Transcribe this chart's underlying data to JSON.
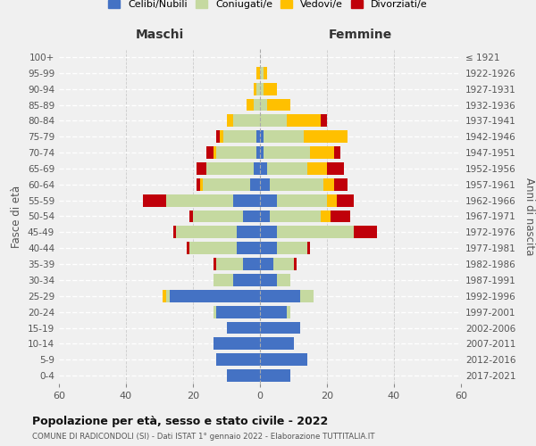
{
  "age_groups": [
    "0-4",
    "5-9",
    "10-14",
    "15-19",
    "20-24",
    "25-29",
    "30-34",
    "35-39",
    "40-44",
    "45-49",
    "50-54",
    "55-59",
    "60-64",
    "65-69",
    "70-74",
    "75-79",
    "80-84",
    "85-89",
    "90-94",
    "95-99",
    "100+"
  ],
  "birth_years": [
    "2017-2021",
    "2012-2016",
    "2007-2011",
    "2002-2006",
    "1997-2001",
    "1992-1996",
    "1987-1991",
    "1982-1986",
    "1977-1981",
    "1972-1976",
    "1967-1971",
    "1962-1966",
    "1957-1961",
    "1952-1956",
    "1947-1951",
    "1942-1946",
    "1937-1941",
    "1932-1936",
    "1927-1931",
    "1922-1926",
    "≤ 1921"
  ],
  "male": {
    "celibi": [
      10,
      13,
      14,
      10,
      13,
      27,
      8,
      5,
      7,
      7,
      5,
      8,
      3,
      2,
      1,
      1,
      0,
      0,
      0,
      0,
      0
    ],
    "coniugati": [
      0,
      0,
      0,
      0,
      1,
      1,
      6,
      8,
      14,
      18,
      15,
      20,
      14,
      14,
      12,
      10,
      8,
      2,
      1,
      0,
      0
    ],
    "vedovi": [
      0,
      0,
      0,
      0,
      0,
      1,
      0,
      0,
      0,
      0,
      0,
      0,
      1,
      0,
      1,
      1,
      2,
      2,
      1,
      1,
      0
    ],
    "divorziati": [
      0,
      0,
      0,
      0,
      0,
      0,
      0,
      1,
      1,
      1,
      1,
      7,
      1,
      3,
      2,
      1,
      0,
      0,
      0,
      0,
      0
    ]
  },
  "female": {
    "nubili": [
      9,
      14,
      10,
      12,
      8,
      12,
      5,
      4,
      5,
      5,
      3,
      5,
      3,
      2,
      1,
      1,
      0,
      0,
      0,
      0,
      0
    ],
    "coniugate": [
      0,
      0,
      0,
      0,
      1,
      4,
      4,
      6,
      9,
      23,
      15,
      15,
      16,
      12,
      14,
      12,
      8,
      2,
      1,
      1,
      0
    ],
    "vedove": [
      0,
      0,
      0,
      0,
      0,
      0,
      0,
      0,
      0,
      0,
      3,
      3,
      3,
      6,
      7,
      13,
      10,
      7,
      4,
      1,
      0
    ],
    "divorziate": [
      0,
      0,
      0,
      0,
      0,
      0,
      0,
      1,
      1,
      7,
      6,
      5,
      4,
      5,
      2,
      0,
      2,
      0,
      0,
      0,
      0
    ]
  },
  "colors": {
    "celibi": "#4472c4",
    "coniugati": "#c5d9a0",
    "vedovi": "#ffc000",
    "divorziati": "#c0000a"
  },
  "title": "Popolazione per età, sesso e stato civile - 2022",
  "subtitle": "COMUNE DI RADICONDOLI (SI) - Dati ISTAT 1° gennaio 2022 - Elaborazione TUTTITALIA.IT",
  "xlabel_left": "Maschi",
  "xlabel_right": "Femmine",
  "ylabel_left": "Fasce di età",
  "ylabel_right": "Anni di nascita",
  "xlim": 60,
  "legend_labels": [
    "Celibi/Nubili",
    "Coniugati/e",
    "Vedovi/e",
    "Divorziati/e"
  ],
  "bg_color": "#f0f0f0"
}
